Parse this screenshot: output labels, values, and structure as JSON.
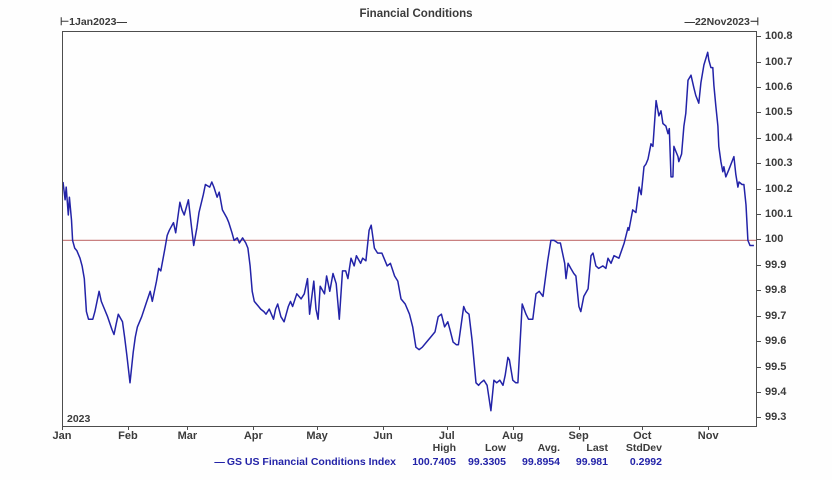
{
  "title": "Financial Conditions",
  "header": {
    "range_start": "⊢1Jan2023—",
    "range_end": "—22Nov2023⊣"
  },
  "axes": {
    "year_label": "2023"
  },
  "legend": {
    "line_sample": "—",
    "series_label": "GS US Financial Conditions Index",
    "stats_headers": [
      "High",
      "Low",
      "Avg.",
      "Last",
      "StdDev"
    ],
    "stats_values": [
      "100.7405",
      "99.3305",
      "99.8954",
      "99.981",
      "0.2992"
    ]
  },
  "colors": {
    "series": "#2323a8",
    "reference_line": "#c98080",
    "axis": "#4d4d4d",
    "text": "#3b3b3b"
  },
  "chart_data": {
    "type": "line",
    "title": "Financial Conditions",
    "x_range_labels": [
      "1Jan2023",
      "22Nov2023"
    ],
    "x_total_days": 326,
    "x_tick_days": [
      0,
      31,
      59,
      90,
      120,
      151,
      181,
      212,
      243,
      273,
      304
    ],
    "x_tick_labels": [
      "Jan",
      "Feb",
      "Mar",
      "Apr",
      "May",
      "Jun",
      "Jul",
      "Aug",
      "Sep",
      "Oct",
      "Nov"
    ],
    "y_tick_labels": [
      "100.8",
      "100.7",
      "100.6",
      "100.5",
      "100.4",
      "100.3",
      "100.2",
      "100.1",
      "100",
      "99.9",
      "99.8",
      "99.7",
      "99.6",
      "99.5",
      "99.4",
      "99.3"
    ],
    "ylim": [
      99.27,
      100.82
    ],
    "grid": false,
    "legend_position": "bottom",
    "reference_line": {
      "value": 100.0,
      "color": "#c98080"
    },
    "stats": {
      "High": "100.7405",
      "Low": "99.3305",
      "Avg.": "99.8954",
      "Last": "99.981",
      "StdDev": "0.2992"
    },
    "series": [
      {
        "name": "GS US Financial Conditions Index",
        "color": "#2323a8",
        "points": [
          [
            0,
            100.23
          ],
          [
            1,
            100.16
          ],
          [
            1.5,
            100.21
          ],
          [
            2.5,
            100.1
          ],
          [
            3,
            100.17
          ],
          [
            4,
            100.08
          ],
          [
            4.5,
            100
          ],
          [
            5.5,
            99.97
          ],
          [
            6.5,
            99.96
          ],
          [
            8,
            99.93
          ],
          [
            9,
            99.9
          ],
          [
            10,
            99.85
          ],
          [
            11,
            99.72
          ],
          [
            12,
            99.69
          ],
          [
            14,
            99.69
          ],
          [
            15,
            99.72
          ],
          [
            17,
            99.8
          ],
          [
            18,
            99.76
          ],
          [
            19,
            99.74
          ],
          [
            21,
            99.7
          ],
          [
            23,
            99.65
          ],
          [
            24,
            99.63
          ],
          [
            25,
            99.67
          ],
          [
            26,
            99.71
          ],
          [
            28,
            99.68
          ],
          [
            29,
            99.62
          ],
          [
            30,
            99.55
          ],
          [
            31.5,
            99.44
          ],
          [
            33,
            99.56
          ],
          [
            34,
            99.62
          ],
          [
            35,
            99.66
          ],
          [
            37,
            99.7
          ],
          [
            39,
            99.75
          ],
          [
            41,
            99.8
          ],
          [
            42,
            99.76
          ],
          [
            44,
            99.84
          ],
          [
            45,
            99.89
          ],
          [
            46,
            99.88
          ],
          [
            48,
            99.97
          ],
          [
            49,
            100.02
          ],
          [
            50,
            100.04
          ],
          [
            52,
            100.07
          ],
          [
            53,
            100.03
          ],
          [
            55,
            100.15
          ],
          [
            56,
            100.12
          ],
          [
            57,
            100.1
          ],
          [
            59,
            100.16
          ],
          [
            60.5,
            100.05
          ],
          [
            61.5,
            99.98
          ],
          [
            63,
            100.05
          ],
          [
            64,
            100.11
          ],
          [
            66,
            100.18
          ],
          [
            67,
            100.22
          ],
          [
            69,
            100.21
          ],
          [
            70,
            100.23
          ],
          [
            71,
            100.21
          ],
          [
            72.5,
            100.17
          ],
          [
            73.5,
            100.19
          ],
          [
            75,
            100.12
          ],
          [
            77,
            100.09
          ],
          [
            78,
            100.07
          ],
          [
            79.5,
            100.03
          ],
          [
            80.5,
            100
          ],
          [
            82,
            100.01
          ],
          [
            83,
            99.99
          ],
          [
            84.5,
            100.01
          ],
          [
            86,
            99.99
          ],
          [
            87,
            99.97
          ],
          [
            88,
            99.9
          ],
          [
            89,
            99.8
          ],
          [
            90,
            99.76
          ],
          [
            92,
            99.74
          ],
          [
            93,
            99.73
          ],
          [
            94.5,
            99.72
          ],
          [
            95.5,
            99.71
          ],
          [
            97,
            99.73
          ],
          [
            99,
            99.69
          ],
          [
            100,
            99.73
          ],
          [
            101,
            99.75
          ],
          [
            102.5,
            99.7
          ],
          [
            104,
            99.68
          ],
          [
            106,
            99.74
          ],
          [
            107,
            99.76
          ],
          [
            108,
            99.74
          ],
          [
            110,
            99.79
          ],
          [
            112,
            99.77
          ],
          [
            113.5,
            99.79
          ],
          [
            115,
            99.85
          ],
          [
            116,
            99.71
          ],
          [
            118,
            99.84
          ],
          [
            119,
            99.73
          ],
          [
            120,
            99.69
          ],
          [
            121,
            99.82
          ],
          [
            123,
            99.79
          ],
          [
            124,
            99.86
          ],
          [
            125.5,
            99.8
          ],
          [
            127,
            99.87
          ],
          [
            128.5,
            99.83
          ],
          [
            130,
            99.69
          ],
          [
            131.5,
            99.88
          ],
          [
            133,
            99.88
          ],
          [
            134,
            99.85
          ],
          [
            135.5,
            99.93
          ],
          [
            137,
            99.9
          ],
          [
            138,
            99.94
          ],
          [
            140,
            99.91
          ],
          [
            141,
            99.93
          ],
          [
            142.5,
            99.92
          ],
          [
            144,
            100.04
          ],
          [
            145,
            100.06
          ],
          [
            146.5,
            99.97
          ],
          [
            148,
            99.95
          ],
          [
            150,
            99.95
          ],
          [
            151,
            99.93
          ],
          [
            152.5,
            99.9
          ],
          [
            154,
            99.91
          ],
          [
            156,
            99.86
          ],
          [
            157.5,
            99.84
          ],
          [
            159,
            99.77
          ],
          [
            161,
            99.75
          ],
          [
            163,
            99.71
          ],
          [
            164.5,
            99.66
          ],
          [
            166,
            99.58
          ],
          [
            167.5,
            99.57
          ],
          [
            169,
            99.58
          ],
          [
            171,
            99.6
          ],
          [
            173,
            99.62
          ],
          [
            175,
            99.64
          ],
          [
            176.5,
            99.7
          ],
          [
            178,
            99.71
          ],
          [
            179.5,
            99.66
          ],
          [
            181,
            99.68
          ],
          [
            182,
            99.65
          ],
          [
            183.5,
            99.6
          ],
          [
            185,
            99.59
          ],
          [
            186,
            99.59
          ],
          [
            188.5,
            99.74
          ],
          [
            189.5,
            99.72
          ],
          [
            191,
            99.71
          ],
          [
            192.4,
            99.61
          ],
          [
            194.3,
            99.44
          ],
          [
            195.5,
            99.43
          ],
          [
            196.5,
            99.44
          ],
          [
            198,
            99.45
          ],
          [
            199.5,
            99.43
          ],
          [
            201.3,
            99.33
          ],
          [
            202.7,
            99.45
          ],
          [
            204,
            99.44
          ],
          [
            205.5,
            99.45
          ],
          [
            207,
            99.43
          ],
          [
            208,
            99.47
          ],
          [
            209.3,
            99.54
          ],
          [
            210,
            99.53
          ],
          [
            211.6,
            99.45
          ],
          [
            213,
            99.44
          ],
          [
            214,
            99.44
          ],
          [
            216,
            99.75
          ],
          [
            217.8,
            99.71
          ],
          [
            219,
            99.69
          ],
          [
            221,
            99.69
          ],
          [
            222.5,
            99.79
          ],
          [
            224,
            99.8
          ],
          [
            225.8,
            99.78
          ],
          [
            228,
            99.92
          ],
          [
            229.5,
            100
          ],
          [
            231,
            100
          ],
          [
            232.8,
            99.99
          ],
          [
            234,
            99.99
          ],
          [
            236,
            99.91
          ],
          [
            236.6,
            99.85
          ],
          [
            237.6,
            99.91
          ],
          [
            238.9,
            99.89
          ],
          [
            240.3,
            99.87
          ],
          [
            241.3,
            99.86
          ],
          [
            242.7,
            99.74
          ],
          [
            243.6,
            99.72
          ],
          [
            245,
            99.78
          ],
          [
            247,
            99.81
          ],
          [
            248.4,
            99.94
          ],
          [
            249.3,
            99.95
          ],
          [
            250.7,
            99.9
          ],
          [
            252,
            99.89
          ],
          [
            254,
            99.9
          ],
          [
            255.4,
            99.89
          ],
          [
            256.4,
            99.93
          ],
          [
            257.8,
            99.91
          ],
          [
            259.2,
            99.94
          ],
          [
            261.5,
            99.93
          ],
          [
            264,
            99.99
          ],
          [
            265.8,
            100.05
          ],
          [
            266.2,
            100.04
          ],
          [
            268,
            100.12
          ],
          [
            269.5,
            100.11
          ],
          [
            271,
            100.21
          ],
          [
            272,
            100.18
          ],
          [
            273.3,
            100.29
          ],
          [
            274.2,
            100.3
          ],
          [
            275.2,
            100.32
          ],
          [
            276.6,
            100.38
          ],
          [
            277.5,
            100.37
          ],
          [
            279,
            100.55
          ],
          [
            280.3,
            100.49
          ],
          [
            281.3,
            100.51
          ],
          [
            282.2,
            100.46
          ],
          [
            283.6,
            100.45
          ],
          [
            284.6,
            100.42
          ],
          [
            285.2,
            100.44
          ],
          [
            286,
            100.25
          ],
          [
            286.9,
            100.25
          ],
          [
            287.4,
            100.37
          ],
          [
            288.3,
            100.35
          ],
          [
            289.3,
            100.33
          ],
          [
            289.7,
            100.31
          ],
          [
            291,
            100.34
          ],
          [
            292.1,
            100.45
          ],
          [
            293,
            100.5
          ],
          [
            294,
            100.63
          ],
          [
            295.4,
            100.65
          ],
          [
            296.8,
            100.6
          ],
          [
            297.7,
            100.57
          ],
          [
            299.1,
            100.54
          ],
          [
            300.1,
            100.62
          ],
          [
            301.5,
            100.69
          ],
          [
            303.3,
            100.74
          ],
          [
            303.8,
            100.71
          ],
          [
            304.8,
            100.68
          ],
          [
            305.7,
            100.68
          ],
          [
            306.2,
            100.61
          ],
          [
            307.1,
            100.53
          ],
          [
            308.1,
            100.45
          ],
          [
            308.5,
            100.37
          ],
          [
            309.5,
            100.31
          ],
          [
            310.4,
            100.27
          ],
          [
            310.9,
            100.29
          ],
          [
            311.8,
            100.25
          ],
          [
            313.3,
            100.28
          ],
          [
            315.6,
            100.33
          ],
          [
            316.5,
            100.26
          ],
          [
            317.5,
            100.21
          ],
          [
            318,
            100.23
          ],
          [
            319.4,
            100.22
          ],
          [
            320.3,
            100.22
          ],
          [
            321.3,
            100.14
          ],
          [
            322.2,
            100
          ],
          [
            323.2,
            99.98
          ],
          [
            325,
            99.98
          ]
        ]
      }
    ]
  }
}
